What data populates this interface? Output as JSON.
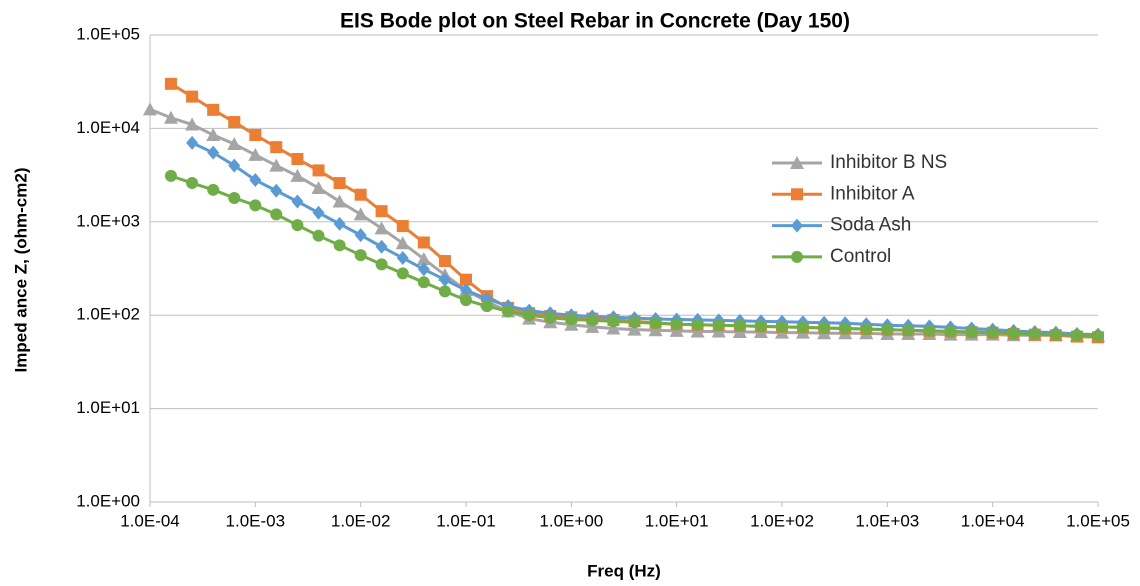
{
  "chart_data": {
    "type": "line",
    "title": "EIS Bode plot on Steel Rebar in  Concrete (Day 150)",
    "x_label": "Freq (Hz)",
    "y_label": "Imped ance  Z, (ohm-cm2)",
    "log_x": true,
    "log_y": true,
    "grid": true,
    "x": [
      0.0001,
      0.000158,
      0.000251,
      0.000398,
      0.000631,
      0.001,
      0.00158,
      0.00251,
      0.00398,
      0.00631,
      0.01,
      0.0158,
      0.0251,
      0.0398,
      0.0631,
      0.1,
      0.158,
      0.251,
      0.398,
      0.631,
      1,
      1.58,
      2.51,
      3.98,
      6.31,
      10,
      15.8,
      25.1,
      39.8,
      63.1,
      100,
      158,
      251,
      398,
      631,
      1000,
      1580,
      2510,
      3980,
      6310,
      10000,
      15800,
      25100,
      39800,
      63100,
      100000
    ],
    "series": [
      {
        "name": "Inhibitor B NS",
        "color": "#a5a5a5",
        "marker": "triangle",
        "values": [
          16000,
          13000,
          11000,
          8500,
          6800,
          5200,
          4000,
          3100,
          2300,
          1650,
          1200,
          850,
          590,
          400,
          270,
          185,
          140,
          110,
          92,
          84,
          79,
          75,
          72,
          70,
          69,
          68,
          67,
          67,
          66,
          66,
          65,
          65,
          64,
          64,
          64,
          63,
          63,
          63,
          62,
          62,
          62,
          61,
          61,
          61,
          60,
          60
        ]
      },
      {
        "name": "Inhibitor A",
        "color": "#ed7d31",
        "marker": "square",
        "values": [
          null,
          30000,
          21900,
          15800,
          11700,
          8500,
          6300,
          4700,
          3550,
          2600,
          1950,
          1300,
          900,
          600,
          380,
          240,
          160,
          120,
          105,
          98,
          95,
          92,
          89,
          86,
          83,
          80,
          79,
          78,
          77,
          76,
          75,
          74,
          73,
          72,
          71,
          70,
          69,
          68,
          67,
          66,
          65,
          63,
          62,
          61,
          59,
          58
        ]
      },
      {
        "name": "Soda Ash",
        "color": "#5b9bd5",
        "marker": "diamond",
        "values": [
          null,
          null,
          7000,
          5500,
          4000,
          2800,
          2150,
          1650,
          1250,
          950,
          720,
          540,
          410,
          310,
          240,
          185,
          150,
          125,
          112,
          105,
          100,
          97,
          95,
          93,
          91,
          90,
          89,
          88,
          87,
          86,
          85,
          84,
          83,
          82,
          80,
          78,
          77,
          76,
          74,
          72,
          70,
          68,
          66,
          65,
          63,
          62
        ]
      },
      {
        "name": "Control",
        "color": "#70ad47",
        "marker": "circle",
        "values": [
          null,
          3100,
          2600,
          2200,
          1800,
          1500,
          1200,
          920,
          710,
          560,
          440,
          350,
          280,
          225,
          180,
          145,
          125,
          110,
          100,
          94,
          90,
          88,
          86,
          84,
          82,
          80,
          79,
          78,
          77,
          76,
          75,
          74,
          73,
          72,
          71,
          70,
          69,
          68,
          67,
          66,
          65,
          64,
          63,
          62,
          61,
          60
        ]
      }
    ],
    "xlim": [
      0.0001,
      100000
    ],
    "xticks": [
      {
        "value": 0.0001,
        "label": "1.0E-04"
      },
      {
        "value": 0.001,
        "label": "1.0E-03"
      },
      {
        "value": 0.01,
        "label": "1.0E-02"
      },
      {
        "value": 0.1,
        "label": "1.0E-01"
      },
      {
        "value": 1,
        "label": "1.0E+00"
      },
      {
        "value": 10,
        "label": "1.0E+01"
      },
      {
        "value": 100,
        "label": "1.0E+02"
      },
      {
        "value": 1000,
        "label": "1.0E+03"
      },
      {
        "value": 10000,
        "label": "1.0E+04"
      },
      {
        "value": 100000,
        "label": "1.0E+05"
      }
    ],
    "ylim": [
      1,
      100000
    ],
    "yticks": [
      {
        "value": 1,
        "label": "1.0E+00"
      },
      {
        "value": 10,
        "label": "1.0E+01"
      },
      {
        "value": 100,
        "label": "1.0E+02"
      },
      {
        "value": 1000,
        "label": "1.0E+03"
      },
      {
        "value": 10000,
        "label": "1.0E+04"
      },
      {
        "value": 100000,
        "label": "1.0E+05"
      }
    ]
  }
}
